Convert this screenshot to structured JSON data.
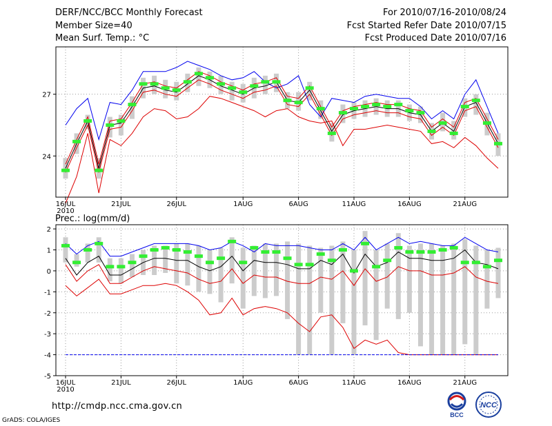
{
  "header": {
    "title": "DERF/NCC/BCC Monthly Forecast",
    "member_size": "Member Size=40",
    "variable": "Mean Surf. Temp.: °C",
    "period": "For 2010/07/16-2010/08/24",
    "started": "Fcst Started Refer Date 2010/07/15",
    "produced": "Fcst Produced Date 2010/07/16"
  },
  "precip_title": "Prec.: log(mm/d)",
  "footer": {
    "url": "http://cmdp.ncc.cma.gov.cn",
    "credit": "GrADS: COLA/IGES",
    "logo_left": "BCC",
    "logo_right": "NCC"
  },
  "colors": {
    "max": "#0000ee",
    "min": "#dd0000",
    "mean": "#000000",
    "box": "#cccccc",
    "median": "#33ee33",
    "grid": "#999999"
  },
  "chart_data": [
    {
      "type": "line",
      "title": "Mean Surf. Temp.: °C",
      "x_ticks": [
        {
          "i": 0,
          "label": "16JUL",
          "sub": "2010"
        },
        {
          "i": 5,
          "label": "21JUL"
        },
        {
          "i": 10,
          "label": "26JUL"
        },
        {
          "i": 16,
          "label": "1AUG"
        },
        {
          "i": 21,
          "label": "6AUG"
        },
        {
          "i": 26,
          "label": "11AUG"
        },
        {
          "i": 31,
          "label": "16AUG"
        },
        {
          "i": 36,
          "label": "21AUG"
        }
      ],
      "ylim": [
        22,
        29.3
      ],
      "y_ticks": [
        24,
        27
      ],
      "grid": true,
      "series": [
        {
          "name": "max",
          "values": [
            25.5,
            26.3,
            26.8,
            24.8,
            26.6,
            26.5,
            27.2,
            28.1,
            28.1,
            28.1,
            28.3,
            28.6,
            28.4,
            28.2,
            27.9,
            27.7,
            27.8,
            28.1,
            27.6,
            27.3,
            27.5,
            27.9,
            26.5,
            25.9,
            26.8,
            26.7,
            26.6,
            26.9,
            27.0,
            26.9,
            26.8,
            26.8,
            26.4,
            25.8,
            26.2,
            25.8,
            27.0,
            27.7,
            26.4,
            25.1
          ]
        },
        {
          "name": "min",
          "values": [
            21.7,
            23.0,
            25.1,
            22.2,
            24.8,
            24.5,
            25.1,
            25.9,
            26.3,
            26.2,
            25.8,
            25.9,
            26.3,
            26.9,
            26.8,
            26.6,
            26.4,
            26.2,
            25.9,
            26.2,
            26.3,
            25.9,
            25.7,
            25.6,
            25.7,
            24.5,
            25.3,
            25.3,
            25.4,
            25.5,
            25.4,
            25.3,
            25.2,
            24.6,
            24.7,
            24.4,
            24.9,
            24.5,
            23.9,
            23.4
          ]
        },
        {
          "name": "mean",
          "values": [
            23.4,
            24.6,
            25.7,
            23.4,
            25.5,
            25.6,
            26.4,
            27.3,
            27.4,
            27.2,
            27.1,
            27.5,
            27.9,
            27.7,
            27.4,
            27.2,
            27.0,
            27.3,
            27.4,
            27.6,
            26.7,
            26.6,
            27.2,
            26.2,
            25.2,
            26.0,
            26.2,
            26.3,
            26.4,
            26.3,
            26.3,
            26.1,
            26.0,
            25.2,
            25.6,
            25.2,
            26.4,
            26.6,
            25.6,
            24.6
          ]
        },
        {
          "name": "upper",
          "values": [
            23.6,
            24.8,
            25.9,
            23.6,
            25.7,
            25.8,
            26.6,
            27.5,
            27.6,
            27.4,
            27.3,
            27.7,
            28.1,
            27.9,
            27.6,
            27.4,
            27.2,
            27.5,
            27.6,
            27.8,
            26.9,
            26.8,
            27.4,
            26.4,
            25.4,
            26.2,
            26.4,
            26.5,
            26.6,
            26.5,
            26.5,
            26.3,
            26.2,
            25.4,
            25.8,
            25.4,
            26.6,
            26.8,
            25.8,
            24.8
          ]
        },
        {
          "name": "lower",
          "values": [
            23.2,
            24.4,
            25.5,
            23.2,
            25.3,
            25.4,
            26.2,
            27.1,
            27.2,
            27.0,
            26.9,
            27.3,
            27.7,
            27.5,
            27.2,
            27.0,
            26.8,
            27.1,
            27.2,
            27.4,
            26.5,
            26.4,
            27.0,
            26.0,
            25.0,
            25.8,
            26.0,
            26.1,
            26.2,
            26.1,
            26.1,
            25.9,
            25.8,
            25.0,
            25.4,
            25.0,
            26.2,
            26.4,
            25.4,
            24.4
          ]
        }
      ],
      "box_low": [
        22.9,
        24.1,
        25.3,
        22.9,
        24.9,
        25.0,
        25.8,
        26.8,
        27.0,
        26.8,
        26.7,
        27.1,
        27.4,
        27.3,
        27.0,
        26.7,
        26.6,
        26.8,
        27.0,
        27.1,
        26.3,
        26.2,
        26.7,
        25.8,
        24.7,
        25.6,
        25.8,
        25.9,
        26.0,
        25.9,
        25.9,
        25.7,
        25.6,
        24.8,
        25.2,
        24.8,
        25.9,
        26.0,
        25.0,
        24.0
      ],
      "box_high": [
        23.9,
        25.1,
        26.0,
        23.9,
        25.9,
        26.0,
        26.9,
        27.8,
        27.9,
        27.7,
        27.6,
        28.0,
        28.3,
        28.1,
        27.9,
        27.6,
        27.5,
        27.8,
        27.9,
        28.0,
        27.1,
        27.1,
        27.6,
        26.7,
        25.6,
        26.5,
        26.6,
        26.7,
        26.8,
        26.7,
        26.7,
        26.5,
        26.4,
        25.6,
        26.1,
        25.7,
        26.8,
        27.0,
        26.1,
        25.1
      ],
      "median": [
        23.3,
        24.7,
        25.7,
        23.3,
        25.5,
        25.7,
        26.5,
        27.5,
        27.5,
        27.3,
        27.2,
        27.6,
        28.0,
        27.8,
        27.5,
        27.3,
        27.1,
        27.4,
        27.6,
        27.6,
        26.7,
        26.6,
        27.3,
        26.3,
        25.1,
        26.1,
        26.3,
        26.4,
        26.5,
        26.4,
        26.5,
        26.2,
        26.1,
        25.2,
        25.6,
        25.1,
        26.4,
        26.7,
        25.6,
        24.6
      ]
    },
    {
      "type": "line",
      "title": "Prec.: log(mm/d)",
      "x_ticks": [
        {
          "i": 0,
          "label": "16JUL",
          "sub": "2010"
        },
        {
          "i": 5,
          "label": "21JUL"
        },
        {
          "i": 10,
          "label": "26JUL"
        },
        {
          "i": 16,
          "label": "1AUG"
        },
        {
          "i": 21,
          "label": "6AUG"
        },
        {
          "i": 26,
          "label": "11AUG"
        },
        {
          "i": 31,
          "label": "16AUG"
        },
        {
          "i": 36,
          "label": "21AUG"
        }
      ],
      "ylim": [
        -5,
        2.2
      ],
      "y_ticks": [
        -5,
        -4,
        -3,
        -2,
        -1,
        0,
        1,
        2
      ],
      "grid": true,
      "series": [
        {
          "name": "max",
          "values": [
            1.3,
            0.8,
            1.2,
            1.4,
            0.7,
            0.7,
            0.9,
            1.1,
            1.3,
            1.3,
            1.3,
            1.3,
            1.2,
            1.0,
            1.1,
            1.4,
            1.2,
            0.9,
            1.3,
            1.2,
            1.2,
            1.2,
            1.1,
            1.0,
            1.0,
            1.3,
            1.0,
            1.6,
            1.0,
            1.3,
            1.6,
            1.3,
            1.4,
            1.3,
            1.2,
            1.2,
            1.6,
            1.3,
            1.0,
            0.9
          ]
        },
        {
          "name": "min",
          "values": [
            -0.7,
            -1.2,
            -0.8,
            -0.4,
            -1.1,
            -1.1,
            -0.9,
            -0.7,
            -0.7,
            -0.6,
            -0.7,
            -1.0,
            -1.4,
            -2.1,
            -2.0,
            -1.3,
            -2.1,
            -1.8,
            -1.7,
            -1.8,
            -2.0,
            -2.5,
            -2.9,
            -2.2,
            -2.1,
            -2.7,
            -3.7,
            -3.3,
            -3.5,
            -3.3,
            -3.9,
            -4.0,
            -4.0,
            -4.0,
            -4.0,
            -4.0,
            -4.0,
            -4.0,
            -4.0,
            -4.0
          ]
        },
        {
          "name": "mean",
          "values": [
            0.6,
            -0.2,
            0.4,
            0.7,
            -0.2,
            -0.2,
            0.1,
            0.4,
            0.6,
            0.6,
            0.5,
            0.5,
            0.2,
            0.0,
            0.2,
            0.7,
            0.0,
            0.5,
            0.4,
            0.4,
            0.3,
            0.1,
            0.1,
            0.5,
            0.3,
            0.8,
            -0.1,
            0.8,
            0.2,
            0.4,
            0.9,
            0.6,
            0.6,
            0.5,
            0.5,
            0.6,
            1.0,
            0.4,
            0.3,
            0.1
          ]
        },
        {
          "name": "lower",
          "values": [
            0.3,
            -0.5,
            0.0,
            0.3,
            -0.6,
            -0.6,
            -0.3,
            0.0,
            0.2,
            0.1,
            0.0,
            -0.1,
            -0.4,
            -0.6,
            -0.5,
            0.1,
            -0.6,
            -0.2,
            -0.3,
            -0.3,
            -0.5,
            -0.6,
            -0.6,
            -0.3,
            -0.4,
            0.0,
            -0.7,
            0.1,
            -0.5,
            -0.3,
            0.2,
            0.0,
            0.0,
            -0.2,
            -0.2,
            -0.1,
            0.2,
            -0.3,
            -0.5,
            -0.6
          ]
        },
        {
          "name": "floor",
          "values": [
            -4,
            -4,
            -4,
            -4,
            -4,
            -4,
            -4,
            -4,
            -4,
            -4,
            -4,
            -4,
            -4,
            -4,
            -4,
            -4,
            -4,
            -4,
            -4,
            -4,
            -4,
            -4,
            -4,
            -4,
            -4,
            -4,
            -4,
            -4,
            -4,
            -4,
            -4,
            -4,
            -4,
            -4,
            -4,
            -4,
            -4,
            -4,
            -4,
            -4
          ]
        }
      ],
      "box_low": [
        0.4,
        0.2,
        0.4,
        0.4,
        -0.5,
        -0.6,
        -0.3,
        -0.2,
        -0.2,
        -0.1,
        -0.6,
        -0.7,
        -1.0,
        -1.1,
        -1.5,
        -0.6,
        -1.8,
        -1.2,
        -1.3,
        -1.2,
        -2.3,
        -4.0,
        -4.0,
        -2.0,
        -4.0,
        -2.5,
        -4.0,
        -2.6,
        -3.3,
        -1.8,
        -2.3,
        -2.0,
        -3.6,
        -4.0,
        -4.0,
        -4.0,
        -3.5,
        -4.0,
        -1.8,
        -1.3
      ],
      "box_high": [
        1.6,
        0.8,
        1.3,
        1.6,
        0.6,
        0.6,
        0.8,
        1.0,
        1.2,
        1.2,
        1.3,
        1.3,
        1.2,
        1.0,
        1.1,
        1.6,
        1.1,
        1.2,
        1.3,
        1.3,
        1.4,
        1.3,
        1.2,
        1.1,
        1.2,
        1.4,
        1.0,
        1.9,
        1.0,
        1.3,
        1.8,
        1.2,
        1.3,
        1.3,
        1.2,
        1.3,
        1.5,
        1.2,
        1.0,
        1.1
      ],
      "median": [
        1.2,
        0.4,
        1.0,
        1.3,
        0.2,
        0.2,
        0.4,
        0.7,
        1.0,
        1.1,
        1.0,
        0.9,
        0.7,
        0.4,
        0.6,
        1.4,
        0.4,
        1.1,
        0.9,
        0.9,
        0.6,
        0.3,
        0.3,
        0.8,
        0.5,
        1.0,
        0.0,
        1.3,
        0.2,
        0.5,
        1.1,
        0.9,
        0.9,
        0.9,
        1.0,
        1.1,
        0.4,
        0.4,
        0.2,
        0.5
      ]
    }
  ]
}
